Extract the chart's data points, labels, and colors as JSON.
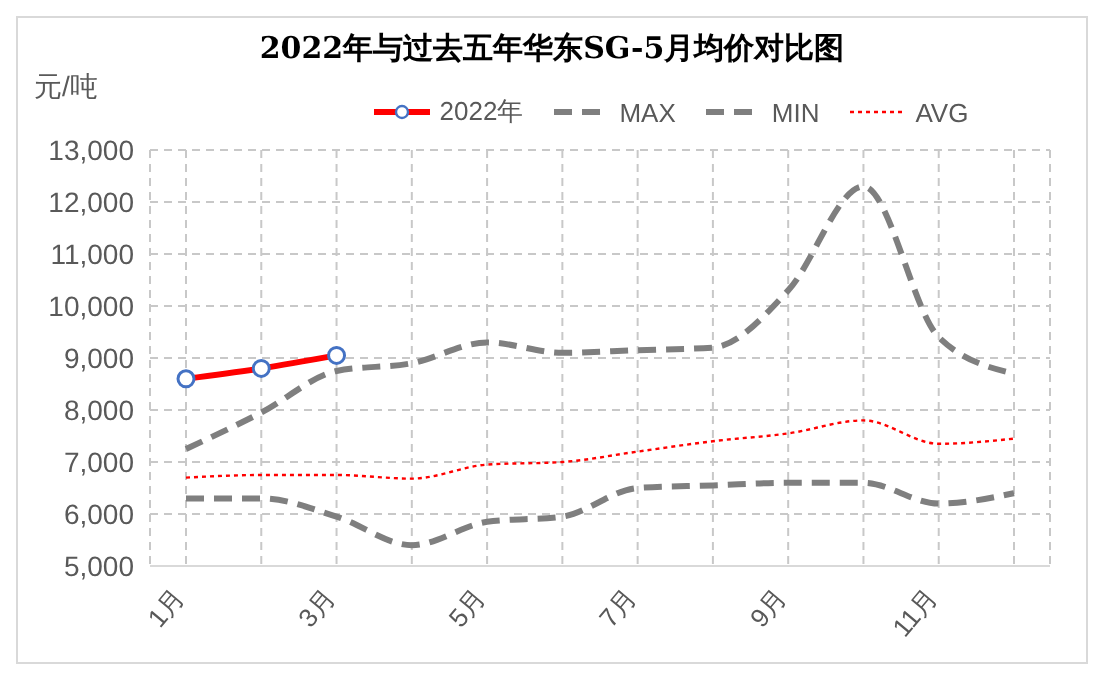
{
  "chart_data": {
    "type": "line",
    "title": "2022年与过去五年华东SG-5月均价对比图",
    "ylabel": "元/吨",
    "categories": [
      "1月",
      null,
      "3月",
      null,
      "5月",
      null,
      "7月",
      null,
      "9月",
      null,
      "11月",
      null
    ],
    "series": [
      {
        "name": "2022年",
        "color": "#ff0000",
        "marker": "circle",
        "line_style": "solid",
        "values": [
          8600,
          8800,
          9050,
          null,
          null,
          null,
          null,
          null,
          null,
          null,
          null,
          null
        ]
      },
      {
        "name": "MAX",
        "color": "#7f7f7f",
        "marker": "none",
        "line_style": "dashed",
        "values": [
          7250,
          7950,
          8750,
          8900,
          9300,
          9100,
          9150,
          9200,
          10300,
          12300,
          9400,
          8700
        ]
      },
      {
        "name": "MIN",
        "color": "#7f7f7f",
        "marker": "none",
        "line_style": "dashed",
        "values": [
          6300,
          6300,
          5950,
          5400,
          5850,
          5950,
          6500,
          6550,
          6600,
          6600,
          6200,
          6400
        ]
      },
      {
        "name": "AVG",
        "color": "#ff0000",
        "marker": "none",
        "line_style": "dotted",
        "values": [
          6700,
          6750,
          6750,
          6680,
          6950,
          7000,
          7200,
          7400,
          7550,
          7800,
          7350,
          7450
        ]
      }
    ],
    "ylim": [
      5000,
      13000
    ],
    "yticks": [
      {
        "value": 5000,
        "label": "5,000"
      },
      {
        "value": 6000,
        "label": "6,000"
      },
      {
        "value": 7000,
        "label": "7,000"
      },
      {
        "value": 8000,
        "label": "8,000"
      },
      {
        "value": 9000,
        "label": "9,000"
      },
      {
        "value": 10000,
        "label": "10,000"
      },
      {
        "value": 11000,
        "label": "11,000"
      },
      {
        "value": 12000,
        "label": "12,000"
      },
      {
        "value": 13000,
        "label": "13,000"
      }
    ],
    "grid": true,
    "legend": "top"
  }
}
